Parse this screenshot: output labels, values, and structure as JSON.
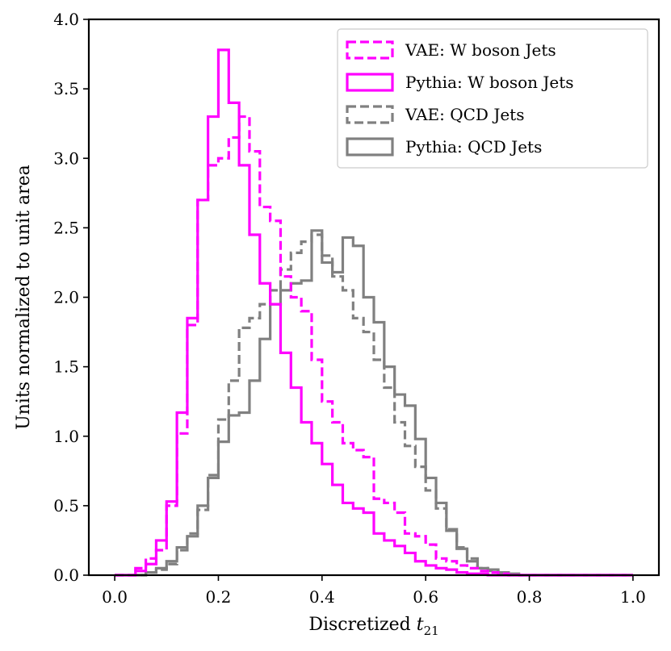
{
  "chart_data": {
    "type": "histogram-step",
    "title": "",
    "xlabel": "Discretized",
    "xlabel_math": "t",
    "xlabel_sub": "21",
    "ylabel": "Units normalized to unit area",
    "xlim": [
      -0.05,
      1.05
    ],
    "ylim": [
      0.0,
      4.0
    ],
    "xticks": [
      "0.0",
      "0.2",
      "0.4",
      "0.6",
      "0.8",
      "1.0"
    ],
    "yticks": [
      "0.0",
      "0.5",
      "1.0",
      "1.5",
      "2.0",
      "2.5",
      "3.0",
      "3.5",
      "4.0"
    ],
    "legend_position": "top-right",
    "bin_edges": [
      0.0,
      0.02,
      0.04,
      0.06,
      0.08,
      0.1,
      0.12,
      0.14,
      0.16,
      0.18,
      0.2,
      0.22,
      0.24,
      0.26,
      0.28,
      0.3,
      0.32,
      0.34,
      0.36,
      0.38,
      0.4,
      0.42,
      0.44,
      0.46,
      0.48,
      0.5,
      0.52,
      0.54,
      0.56,
      0.58,
      0.6,
      0.62,
      0.64,
      0.66,
      0.68,
      0.7,
      0.72,
      0.74,
      0.76,
      0.78,
      0.8,
      0.82,
      0.84,
      0.86,
      0.88,
      0.9,
      0.92,
      0.94,
      0.96,
      0.98,
      1.0
    ],
    "series": [
      {
        "name": "VAE: W boson Jets",
        "color": "#ff00ff",
        "style": "dashed",
        "values": [
          0.0,
          0.0,
          0.05,
          0.12,
          0.18,
          0.5,
          1.02,
          1.8,
          2.7,
          2.95,
          3.0,
          3.15,
          3.3,
          3.05,
          2.65,
          2.55,
          2.15,
          2.0,
          1.9,
          1.55,
          1.25,
          1.1,
          0.95,
          0.9,
          0.85,
          0.55,
          0.52,
          0.45,
          0.3,
          0.28,
          0.22,
          0.12,
          0.1,
          0.07,
          0.05,
          0.03,
          0.02,
          0.01,
          0.0,
          0.0,
          0.0,
          0.0,
          0.0,
          0.0,
          0.0,
          0.0,
          0.0,
          0.0,
          0.0,
          0.0
        ]
      },
      {
        "name": "Pythia: W boson Jets",
        "color": "#ff00ff",
        "style": "solid",
        "values": [
          0.0,
          0.0,
          0.03,
          0.08,
          0.25,
          0.53,
          1.17,
          1.85,
          2.7,
          3.3,
          3.78,
          3.4,
          2.95,
          2.45,
          2.1,
          1.95,
          1.6,
          1.35,
          1.1,
          0.95,
          0.8,
          0.65,
          0.52,
          0.48,
          0.45,
          0.3,
          0.25,
          0.21,
          0.16,
          0.1,
          0.07,
          0.05,
          0.04,
          0.02,
          0.01,
          0.01,
          0.0,
          0.0,
          0.0,
          0.0,
          0.0,
          0.0,
          0.0,
          0.0,
          0.0,
          0.0,
          0.0,
          0.0,
          0.0,
          0.0
        ]
      },
      {
        "name": "VAE: QCD Jets",
        "color": "#808080",
        "style": "dashed",
        "values": [
          0.0,
          0.0,
          0.0,
          0.02,
          0.04,
          0.08,
          0.18,
          0.3,
          0.47,
          0.72,
          1.12,
          1.4,
          1.78,
          1.85,
          1.95,
          2.05,
          2.2,
          2.32,
          2.4,
          2.45,
          2.3,
          2.15,
          2.05,
          1.85,
          1.75,
          1.55,
          1.35,
          1.1,
          0.93,
          0.78,
          0.61,
          0.48,
          0.33,
          0.2,
          0.12,
          0.05,
          0.03,
          0.01,
          0.0,
          0.0,
          0.0,
          0.0,
          0.0,
          0.0,
          0.0,
          0.0,
          0.0,
          0.0,
          0.0,
          0.0
        ]
      },
      {
        "name": "Pythia: QCD Jets",
        "color": "#808080",
        "style": "solid",
        "values": [
          0.0,
          0.0,
          0.0,
          0.02,
          0.05,
          0.1,
          0.2,
          0.28,
          0.5,
          0.7,
          0.96,
          1.15,
          1.17,
          1.4,
          1.7,
          1.95,
          2.05,
          2.1,
          2.12,
          2.48,
          2.25,
          2.18,
          2.43,
          2.37,
          2.0,
          1.82,
          1.5,
          1.3,
          1.22,
          0.98,
          0.7,
          0.52,
          0.32,
          0.19,
          0.1,
          0.05,
          0.04,
          0.02,
          0.01,
          0.0,
          0.0,
          0.0,
          0.0,
          0.0,
          0.0,
          0.0,
          0.0,
          0.0,
          0.0,
          0.0
        ]
      }
    ]
  }
}
